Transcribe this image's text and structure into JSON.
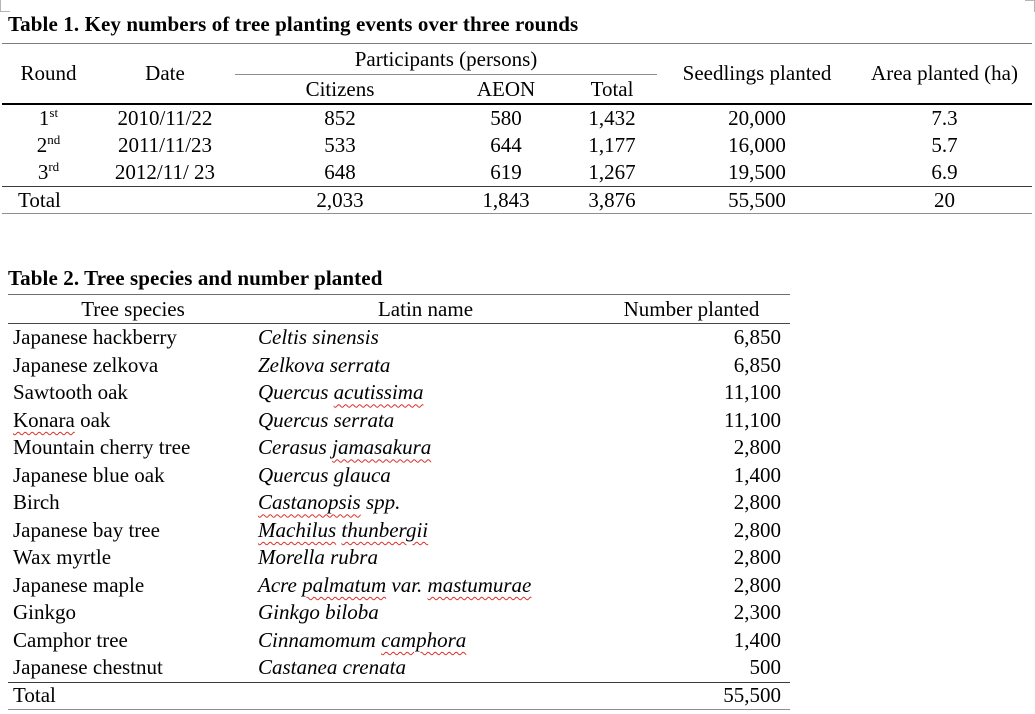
{
  "table1": {
    "title": "Table 1. Key numbers of tree planting events over three rounds",
    "headers": {
      "round": "Round",
      "date": "Date",
      "participants_group": "Participants (persons)",
      "citizens": "Citizens",
      "aeon": "AEON",
      "total": "Total",
      "seedlings": "Seedlings planted",
      "area": "Area planted (ha)"
    },
    "rows": [
      {
        "round": [
          {
            "text": "1"
          },
          {
            "text": "st",
            "sup": true
          }
        ],
        "date": "2010/11/22",
        "citizens": "852",
        "aeon": "580",
        "total": "1,432",
        "seedlings": "20,000",
        "area": "7.3"
      },
      {
        "round": [
          {
            "text": "2"
          },
          {
            "text": "nd",
            "sup": true
          }
        ],
        "date": "2011/11/23",
        "citizens": "533",
        "aeon": "644",
        "total": "1,177",
        "seedlings": "16,000",
        "area": "5.7"
      },
      {
        "round": [
          {
            "text": "3"
          },
          {
            "text": "rd",
            "sup": true
          }
        ],
        "date": "2012/11/ 23",
        "citizens": "648",
        "aeon": "619",
        "total": "1,267",
        "seedlings": "19,500",
        "area": "6.9"
      }
    ],
    "total_row": {
      "label": "Total",
      "citizens": "2,033",
      "aeon": "1,843",
      "total": "3,876",
      "seedlings": "55,500",
      "area": "20"
    }
  },
  "table2": {
    "title": "Table 2. Tree species and number planted",
    "headers": {
      "species": "Tree species",
      "latin": "Latin name",
      "number": "Number planted"
    },
    "rows": [
      {
        "species": [
          {
            "text": "Japanese hackberry"
          }
        ],
        "latin": [
          {
            "text": "Celtis sinensis"
          }
        ],
        "number": "6,850"
      },
      {
        "species": [
          {
            "text": "Japanese zelkova"
          }
        ],
        "latin": [
          {
            "text": "Zelkova serrata"
          }
        ],
        "number": "6,850"
      },
      {
        "species": [
          {
            "text": "Sawtooth oak"
          }
        ],
        "latin": [
          {
            "text": "Quercus "
          },
          {
            "text": "acutissima",
            "wavy": true
          }
        ],
        "number": "11,100"
      },
      {
        "species": [
          {
            "text": "Konara",
            "wavy": true
          },
          {
            "text": " oak"
          }
        ],
        "latin": [
          {
            "text": "Quercus serrata"
          }
        ],
        "number": "11,100"
      },
      {
        "species": [
          {
            "text": "Mountain cherry tree"
          }
        ],
        "latin": [
          {
            "text": "Cerasus "
          },
          {
            "text": "jamasakura",
            "wavy": true
          }
        ],
        "number": "2,800"
      },
      {
        "species": [
          {
            "text": "Japanese blue oak"
          }
        ],
        "latin": [
          {
            "text": "Quercus glauca"
          }
        ],
        "number": "1,400"
      },
      {
        "species": [
          {
            "text": "Birch"
          }
        ],
        "latin": [
          {
            "text": "Castanopsis",
            "wavy": true
          },
          {
            "text": " spp."
          }
        ],
        "number": "2,800"
      },
      {
        "species": [
          {
            "text": "Japanese bay tree"
          }
        ],
        "latin": [
          {
            "text": "Machilus",
            "wavy": true
          },
          {
            "text": " "
          },
          {
            "text": "thunbergii",
            "wavy": true
          }
        ],
        "number": "2,800"
      },
      {
        "species": [
          {
            "text": "Wax myrtle"
          }
        ],
        "latin": [
          {
            "text": "Morella rubra"
          }
        ],
        "number": "2,800"
      },
      {
        "species": [
          {
            "text": "Japanese maple"
          }
        ],
        "latin": [
          {
            "text": "Acre "
          },
          {
            "text": "palmatum",
            "wavy": true
          },
          {
            "text": " var. "
          },
          {
            "text": "mastumurae",
            "wavy": true
          }
        ],
        "number": "2,800"
      },
      {
        "species": [
          {
            "text": "Ginkgo"
          }
        ],
        "latin": [
          {
            "text": "Ginkgo biloba"
          }
        ],
        "number": "2,300"
      },
      {
        "species": [
          {
            "text": "Camphor tree"
          }
        ],
        "latin": [
          {
            "text": "Cinnamomum "
          },
          {
            "text": "camphora",
            "wavy": true
          }
        ],
        "number": "1,400"
      },
      {
        "species": [
          {
            "text": "Japanese chestnut"
          }
        ],
        "latin": [
          {
            "text": "Castanea crenata"
          }
        ],
        "number": "500"
      }
    ],
    "total_row": {
      "label": "Total",
      "number": "55,500"
    }
  }
}
